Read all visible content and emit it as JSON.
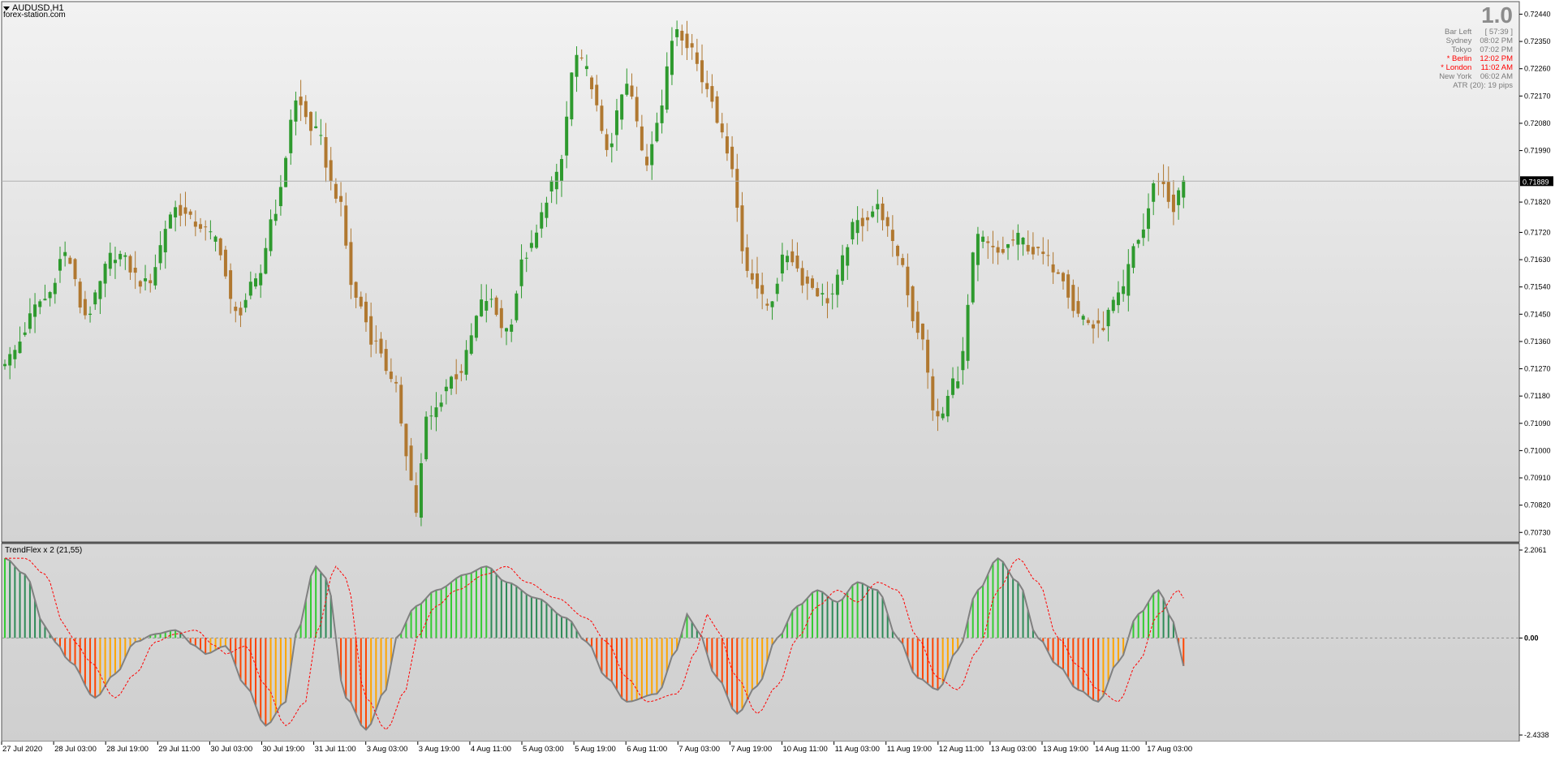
{
  "window": {
    "symbol_title": "AUDUSD,H1",
    "source": "forex-station.com"
  },
  "info_panel": {
    "value": "1.0",
    "rows": [
      {
        "label": "Bar Left",
        "value": "[ 57:39 ]",
        "highlight": false
      },
      {
        "label": "Sydney",
        "value": "08:02 PM",
        "highlight": false
      },
      {
        "label": "Tokyo",
        "value": "07:02 PM",
        "highlight": false
      },
      {
        "label": "* Berlin",
        "value": "12:02 PM",
        "highlight": true
      },
      {
        "label": "* London",
        "value": "11:02 AM",
        "highlight": true
      },
      {
        "label": "New York",
        "value": "06:02 AM",
        "highlight": false
      }
    ],
    "atr": "ATR (20): 19 pips"
  },
  "colors": {
    "bull_candle": "#2e9a2e",
    "bear_candle": "#b07830",
    "hist_bright_green": "#33cc33",
    "hist_dark_green": "#2e8b57",
    "hist_orange": "#ffa500",
    "hist_red": "#ff4500",
    "signal_line": "#ff0000",
    "current_price_tag": "#000000"
  },
  "chart_data": [
    {
      "type": "candlestick",
      "symbol": "AUDUSD",
      "timeframe": "H1",
      "current_price": "0.71889",
      "yaxis_ticks": [
        "0.72440",
        "0.72350",
        "0.72260",
        "0.72170",
        "0.72080",
        "0.71990",
        "0.71889",
        "0.71820",
        "0.71720",
        "0.71630",
        "0.71540",
        "0.71450",
        "0.71360",
        "0.71270",
        "0.71180",
        "0.71090",
        "0.71000",
        "0.70910",
        "0.70820",
        "0.70730"
      ],
      "ylim": [
        0.7072,
        0.7246
      ],
      "xaxis_ticks": [
        "27 Jul 2020",
        "28 Jul 03:00",
        "28 Jul 19:00",
        "29 Jul 11:00",
        "30 Jul 03:00",
        "30 Jul 19:00",
        "31 Jul 11:00",
        "3 Aug 03:00",
        "3 Aug 19:00",
        "4 Aug 11:00",
        "5 Aug 03:00",
        "5 Aug 19:00",
        "6 Aug 11:00",
        "7 Aug 03:00",
        "7 Aug 19:00",
        "10 Aug 11:00",
        "11 Aug 03:00",
        "11 Aug 19:00",
        "12 Aug 11:00",
        "13 Aug 03:00",
        "13 Aug 19:00",
        "14 Aug 11:00",
        "17 Aug 03:00"
      ],
      "bars": 236,
      "close_anchors": [
        [
          0,
          0.713
        ],
        [
          8,
          0.715
        ],
        [
          12,
          0.7165
        ],
        [
          16,
          0.7145
        ],
        [
          22,
          0.7165
        ],
        [
          28,
          0.7155
        ],
        [
          34,
          0.718
        ],
        [
          38,
          0.7175
        ],
        [
          42,
          0.717
        ],
        [
          46,
          0.7145
        ],
        [
          50,
          0.7155
        ],
        [
          54,
          0.718
        ],
        [
          58,
          0.7215
        ],
        [
          62,
          0.7205
        ],
        [
          66,
          0.7185
        ],
        [
          70,
          0.715
        ],
        [
          74,
          0.7135
        ],
        [
          78,
          0.712
        ],
        [
          80,
          0.71
        ],
        [
          82,
          0.708
        ],
        [
          84,
          0.711
        ],
        [
          90,
          0.7125
        ],
        [
          96,
          0.715
        ],
        [
          100,
          0.714
        ],
        [
          104,
          0.7165
        ],
        [
          110,
          0.719
        ],
        [
          114,
          0.723
        ],
        [
          116,
          0.7225
        ],
        [
          120,
          0.72
        ],
        [
          124,
          0.722
        ],
        [
          128,
          0.7195
        ],
        [
          130,
          0.721
        ],
        [
          134,
          0.724
        ],
        [
          136,
          0.7235
        ],
        [
          140,
          0.722
        ],
        [
          144,
          0.72
        ],
        [
          148,
          0.716
        ],
        [
          152,
          0.7148
        ],
        [
          156,
          0.7165
        ],
        [
          160,
          0.7155
        ],
        [
          164,
          0.715
        ],
        [
          170,
          0.7175
        ],
        [
          174,
          0.718
        ],
        [
          178,
          0.7165
        ],
        [
          182,
          0.714
        ],
        [
          186,
          0.711
        ],
        [
          190,
          0.7125
        ],
        [
          194,
          0.717
        ],
        [
          198,
          0.7165
        ],
        [
          202,
          0.717
        ],
        [
          206,
          0.7165
        ],
        [
          210,
          0.716
        ],
        [
          214,
          0.7145
        ],
        [
          218,
          0.714
        ],
        [
          222,
          0.715
        ],
        [
          226,
          0.717
        ],
        [
          230,
          0.719
        ],
        [
          233,
          0.718
        ],
        [
          235,
          0.7189
        ]
      ]
    },
    {
      "type": "histogram",
      "name": "TrendFlex x 2 (21,55)",
      "yaxis_ticks": [
        "2.2061",
        "0.00",
        "-2.4338"
      ],
      "ylim": [
        -2.4338,
        2.2061
      ],
      "bars": 236,
      "value_anchors": [
        [
          0,
          2.0
        ],
        [
          4,
          1.6
        ],
        [
          8,
          0.3
        ],
        [
          10,
          -0.1
        ],
        [
          13,
          -0.6
        ],
        [
          18,
          -1.5
        ],
        [
          22,
          -0.9
        ],
        [
          26,
          -0.1
        ],
        [
          30,
          0.1
        ],
        [
          34,
          0.2
        ],
        [
          38,
          -0.2
        ],
        [
          40,
          -0.4
        ],
        [
          44,
          -0.2
        ],
        [
          48,
          -1.2
        ],
        [
          52,
          -2.2
        ],
        [
          56,
          -1.6
        ],
        [
          58,
          0.1
        ],
        [
          62,
          1.8
        ],
        [
          64,
          1.5
        ],
        [
          68,
          -1.5
        ],
        [
          72,
          -2.3
        ],
        [
          76,
          -1.3
        ],
        [
          78,
          0.0
        ],
        [
          82,
          0.8
        ],
        [
          86,
          1.2
        ],
        [
          92,
          1.6
        ],
        [
          96,
          1.8
        ],
        [
          100,
          1.4
        ],
        [
          106,
          1.0
        ],
        [
          112,
          0.5
        ],
        [
          116,
          -0.1
        ],
        [
          120,
          -1.0
        ],
        [
          124,
          -1.6
        ],
        [
          130,
          -1.4
        ],
        [
          134,
          -0.3
        ],
        [
          136,
          0.6
        ],
        [
          138,
          0.2
        ],
        [
          142,
          -1.0
        ],
        [
          146,
          -1.9
        ],
        [
          150,
          -1.2
        ],
        [
          154,
          0.0
        ],
        [
          158,
          0.8
        ],
        [
          162,
          1.2
        ],
        [
          166,
          0.9
        ],
        [
          170,
          1.4
        ],
        [
          174,
          1.2
        ],
        [
          178,
          0.0
        ],
        [
          182,
          -1.0
        ],
        [
          186,
          -1.3
        ],
        [
          190,
          -0.3
        ],
        [
          194,
          1.2
        ],
        [
          198,
          2.0
        ],
        [
          202,
          1.4
        ],
        [
          206,
          0.0
        ],
        [
          210,
          -0.7
        ],
        [
          214,
          -1.3
        ],
        [
          218,
          -1.6
        ],
        [
          222,
          -0.6
        ],
        [
          226,
          0.6
        ],
        [
          230,
          1.2
        ],
        [
          233,
          0.4
        ],
        [
          235,
          -0.7
        ]
      ],
      "signal_lag_bars": 4
    }
  ]
}
